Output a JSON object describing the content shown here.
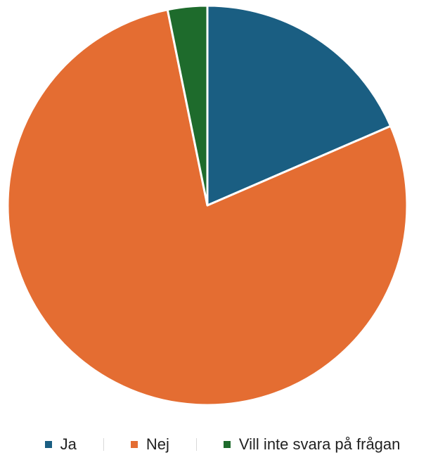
{
  "chart_data": {
    "type": "pie",
    "categories": [
      "Ja",
      "Nej",
      "Vill inte svara på frågan"
    ],
    "values": [
      18.5,
      78.3,
      3.2
    ],
    "colors": [
      "#1a5e82",
      "#e46d32",
      "#1e6b2c"
    ],
    "start_angle_deg": 0,
    "direction": "clockwise",
    "legend_position": "bottom"
  }
}
